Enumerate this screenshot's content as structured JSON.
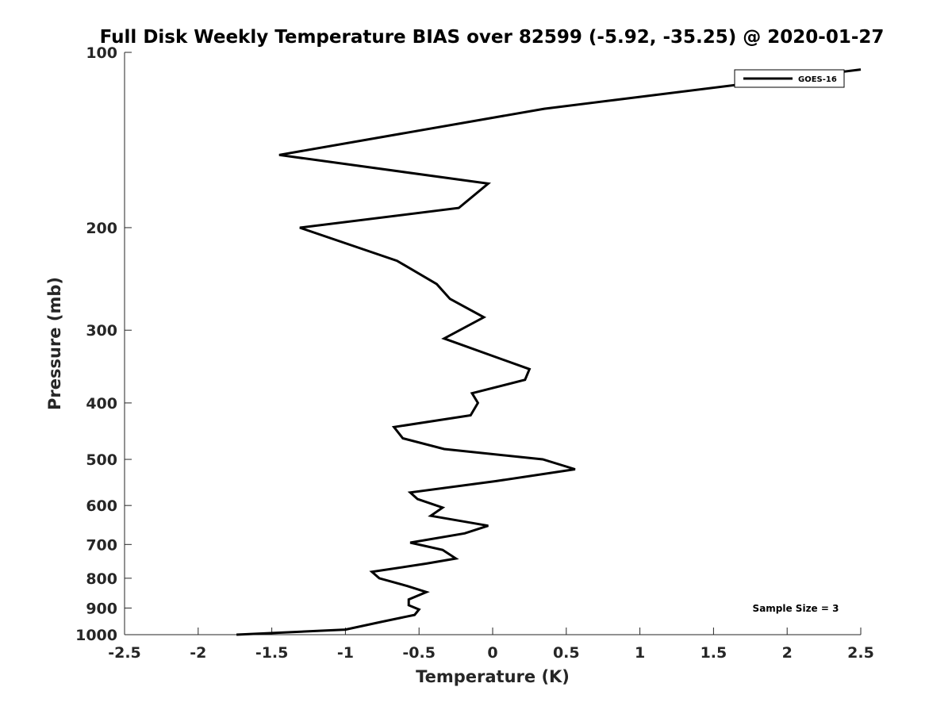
{
  "chart_data": {
    "type": "line",
    "title": "Full Disk Weekly Temperature BIAS over 82599 (-5.92, -35.25) @ 2020-01-27",
    "xlabel": "Temperature (K)",
    "ylabel": "Pressure (mb)",
    "xlim": [
      -2.5,
      2.5
    ],
    "ylim": [
      100,
      1000
    ],
    "y_scale": "log",
    "y_direction": "reversed",
    "xticks": [
      -2.5,
      -2,
      -1.5,
      -1,
      -0.5,
      0,
      0.5,
      1,
      1.5,
      2,
      2.5
    ],
    "xtick_labels": [
      "-2.5",
      "-2",
      "-1.5",
      "-1",
      "-0.5",
      "0",
      "0.5",
      "1",
      "1.5",
      "2",
      "2.5"
    ],
    "yticks": [
      100,
      200,
      300,
      400,
      500,
      600,
      700,
      800,
      900,
      1000
    ],
    "ytick_labels": [
      "100",
      "200",
      "300",
      "400",
      "500",
      "600",
      "700",
      "800",
      "900",
      "1000"
    ],
    "grid": false,
    "legend_position": "top-right",
    "line_color": "#000000",
    "series": [
      {
        "name": "GOES-16",
        "x": [
          2.5,
          0.35,
          -1.45,
          -0.03,
          -0.23,
          -1.31,
          -0.65,
          -0.38,
          -0.29,
          -0.06,
          -0.33,
          0.25,
          0.22,
          -0.14,
          -0.1,
          -0.15,
          -0.67,
          -0.61,
          -0.33,
          0.34,
          0.56,
          0.02,
          -0.56,
          -0.51,
          -0.34,
          -0.42,
          -0.03,
          -0.19,
          -0.56,
          -0.34,
          -0.25,
          -0.45,
          -0.82,
          -0.77,
          -0.58,
          -0.45,
          -0.57,
          -0.57,
          -0.5,
          -0.53,
          -0.75,
          -1.0,
          -1.74
        ],
        "y": [
          107,
          125,
          150,
          168,
          185,
          200,
          228,
          250,
          265,
          285,
          310,
          350,
          365,
          385,
          400,
          420,
          440,
          460,
          480,
          500,
          520,
          545,
          570,
          585,
          605,
          625,
          650,
          670,
          695,
          715,
          740,
          755,
          780,
          800,
          825,
          845,
          870,
          890,
          905,
          925,
          950,
          980,
          1000
        ]
      }
    ],
    "annotations": [
      {
        "text": "Sample Size = 3",
        "position": "bottom-right"
      }
    ]
  }
}
